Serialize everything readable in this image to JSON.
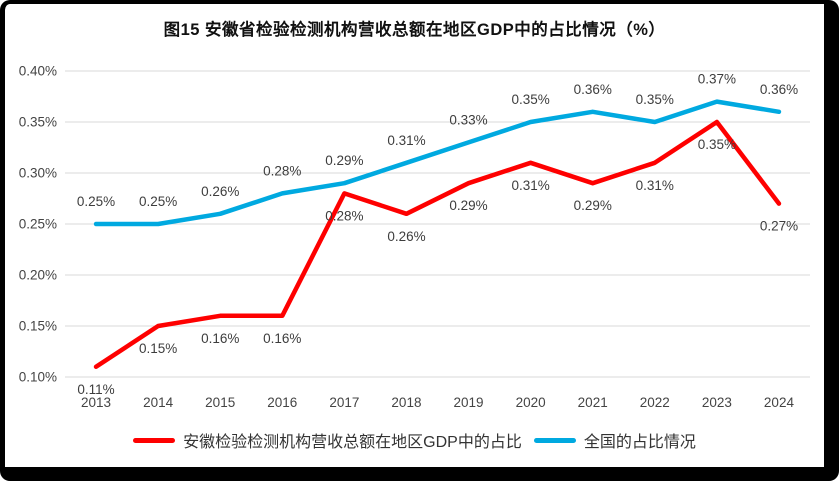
{
  "title": "图15 安徽省检验检测机构营收总额在地区GDP中的占比情况（%）",
  "chart_data": {
    "type": "line",
    "x": [
      "2013",
      "2014",
      "2015",
      "2016",
      "2017",
      "2018",
      "2019",
      "2020",
      "2021",
      "2022",
      "2023",
      "2024"
    ],
    "series": [
      {
        "id": "anhui",
        "name": "安徽检验检测机构营收总额在地区GDP中的占比",
        "color": "#fe0000",
        "label_position": "below",
        "values": [
          0.11,
          0.15,
          0.16,
          0.16,
          0.28,
          0.26,
          0.29,
          0.31,
          0.29,
          0.31,
          0.35,
          0.27
        ],
        "labels": [
          "0.11%",
          "0.15%",
          "0.16%",
          "0.16%",
          "0.28%",
          "0.26%",
          "0.29%",
          "0.31%",
          "0.29%",
          "0.31%",
          "0.35%",
          "0.27%"
        ]
      },
      {
        "id": "national",
        "name": "全国的占比情况",
        "color": "#00a9e0",
        "label_position": "above",
        "values": [
          0.25,
          0.25,
          0.26,
          0.28,
          0.29,
          0.31,
          0.33,
          0.35,
          0.36,
          0.35,
          0.37,
          0.36
        ],
        "labels": [
          "0.25%",
          "0.25%",
          "0.26%",
          "0.28%",
          "0.29%",
          "0.31%",
          "0.33%",
          "0.35%",
          "0.36%",
          "0.35%",
          "0.37%",
          "0.36%"
        ]
      }
    ],
    "xlabel": "",
    "ylabel": "",
    "ylim": [
      0.1,
      0.4
    ],
    "ytick_step": 0.05,
    "ytick_labels": [
      "0.10%",
      "0.15%",
      "0.20%",
      "0.25%",
      "0.30%",
      "0.35%",
      "0.40%"
    ],
    "grid": true,
    "legend_position": "bottom"
  }
}
